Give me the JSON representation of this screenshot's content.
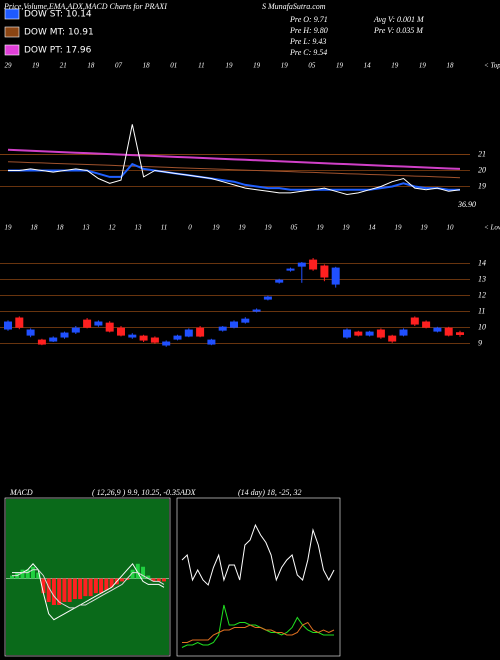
{
  "header": {
    "title": "Price,Volume,EMA,ADX,MACD Charts for PRAXI",
    "site": "S MunafaSutra.com",
    "legend": [
      {
        "name": "DOW ST: 10.14",
        "color": "#1e5aff"
      },
      {
        "name": "DOW MT: 10.91",
        "color": "#8b4513"
      },
      {
        "name": "DOW PT: 17.96",
        "color": "#e040d8"
      }
    ],
    "stats_left": [
      "Pre O: 9.71",
      "Pre H: 9.80",
      "Pre L: 9.43",
      "Pre C: 9.54"
    ],
    "stats_right": [
      "Avg V: 0.001 M",
      "Pre V: 0.035 M"
    ]
  },
  "chart_data": [
    {
      "type": "line",
      "tag": "< Tops",
      "note": "36.90",
      "date_labels": [
        "29",
        "19",
        "21",
        "18",
        "07",
        "18",
        "01",
        "11",
        "19",
        "19",
        "19",
        "05",
        "19",
        "14",
        "19",
        "19",
        "18"
      ],
      "ylim": [
        16.9,
        26.3
      ],
      "yticks": [
        21,
        20,
        19
      ],
      "grid": true,
      "grid_color": "#8b4513",
      "series": [
        {
          "name": "PT",
          "color": "#d040c8",
          "width": 2,
          "values": [
            21.3,
            21.27,
            21.24,
            21.21,
            21.18,
            21.15,
            21.12,
            21.09,
            21.06,
            21.03,
            21.0,
            20.97,
            20.94,
            20.91,
            20.88,
            20.85,
            20.82,
            20.79,
            20.76,
            20.73,
            20.7,
            20.67,
            20.64,
            20.61,
            20.58,
            20.55,
            20.52,
            20.49,
            20.46,
            20.43,
            20.4,
            20.37,
            20.34,
            20.31,
            20.28,
            20.25,
            20.22,
            20.19,
            20.16,
            20.13,
            20.1
          ]
        },
        {
          "name": "MT",
          "color": "#a0522d",
          "width": 1,
          "values": [
            20.55,
            20.53,
            20.5,
            20.48,
            20.45,
            20.43,
            20.4,
            20.38,
            20.35,
            20.33,
            20.3,
            20.28,
            20.25,
            20.23,
            20.2,
            20.18,
            20.15,
            20.13,
            20.1,
            20.08,
            20.05,
            20.03,
            20.0,
            19.98,
            19.95,
            19.93,
            19.9,
            19.88,
            19.85,
            19.83,
            19.8,
            19.78,
            19.75,
            19.73,
            19.7,
            19.68,
            19.65,
            19.63,
            19.6,
            19.58,
            19.55
          ]
        },
        {
          "name": "ST",
          "color": "#2060ff",
          "width": 2,
          "values": [
            20.0,
            20.0,
            20.0,
            20.0,
            20.0,
            20.0,
            20.0,
            20.0,
            19.8,
            19.6,
            19.6,
            20.4,
            20.1,
            20.0,
            19.9,
            19.8,
            19.7,
            19.6,
            19.5,
            19.4,
            19.3,
            19.1,
            19.0,
            18.9,
            18.9,
            18.8,
            18.8,
            18.8,
            18.8,
            18.8,
            18.8,
            18.8,
            18.8,
            18.9,
            19.0,
            19.2,
            19.0,
            18.9,
            18.9,
            18.8,
            18.8
          ]
        },
        {
          "name": "Price",
          "color": "#ffffff",
          "width": 1,
          "values": [
            20.0,
            20.0,
            20.1,
            20.0,
            19.9,
            20.0,
            20.1,
            20.0,
            19.5,
            19.2,
            19.4,
            22.9,
            19.6,
            20.0,
            19.9,
            19.8,
            19.7,
            19.6,
            19.5,
            19.3,
            19.1,
            18.9,
            18.8,
            18.7,
            18.6,
            18.6,
            18.7,
            18.8,
            18.9,
            18.7,
            18.5,
            18.6,
            18.8,
            19.0,
            19.3,
            19.5,
            18.9,
            18.8,
            18.9,
            18.7,
            18.8
          ]
        }
      ]
    },
    {
      "type": "candlestick",
      "tag": "< Lows",
      "date_labels": [
        "19",
        "18",
        "18",
        "13",
        "12",
        "13",
        "11",
        "0",
        "19",
        "19",
        "19",
        "05",
        "19",
        "19",
        "14",
        "19",
        "19",
        "10"
      ],
      "ylim": [
        8.6,
        16.1
      ],
      "yticks": [
        14,
        13,
        12,
        11,
        10,
        9
      ],
      "grid": true,
      "grid_color": "#8b4513",
      "up_color": "#2050ff",
      "down_color": "#ff2020",
      "candles": [
        {
          "o": 9.88,
          "h": 10.45,
          "l": 9.8,
          "c": 10.38
        },
        {
          "o": 10.63,
          "h": 10.7,
          "l": 9.9,
          "c": 10
        },
        {
          "o": 9.5,
          "h": 9.95,
          "l": 9.4,
          "c": 9.88
        },
        {
          "o": 9.25,
          "h": 9.3,
          "l": 8.9,
          "c": 8.94
        },
        {
          "o": 9.13,
          "h": 9.45,
          "l": 9.1,
          "c": 9.38
        },
        {
          "o": 9.38,
          "h": 9.75,
          "l": 9.3,
          "c": 9.69
        },
        {
          "o": 9.69,
          "h": 10.1,
          "l": 9.6,
          "c": 10
        },
        {
          "o": 10.5,
          "h": 10.6,
          "l": 9.95,
          "c": 10
        },
        {
          "o": 10.13,
          "h": 10.45,
          "l": 10.05,
          "c": 10.38
        },
        {
          "o": 10.31,
          "h": 10.4,
          "l": 9.7,
          "c": 9.75
        },
        {
          "o": 10,
          "h": 10.1,
          "l": 9.45,
          "c": 9.5
        },
        {
          "o": 9.38,
          "h": 9.65,
          "l": 9.3,
          "c": 9.56
        },
        {
          "o": 9.5,
          "h": 9.55,
          "l": 9.1,
          "c": 9.19
        },
        {
          "o": 9.38,
          "h": 9.45,
          "l": 9,
          "c": 9.06
        },
        {
          "o": 8.88,
          "h": 9.2,
          "l": 8.8,
          "c": 9.13
        },
        {
          "o": 9.25,
          "h": 9.55,
          "l": 9.2,
          "c": 9.5
        },
        {
          "o": 9.44,
          "h": 9.95,
          "l": 9.4,
          "c": 9.88
        },
        {
          "o": 10,
          "h": 10.1,
          "l": 9.4,
          "c": 9.44
        },
        {
          "o": 8.94,
          "h": 9.3,
          "l": 8.9,
          "c": 9.25
        },
        {
          "o": 9.81,
          "h": 10.1,
          "l": 9.75,
          "c": 10.06
        },
        {
          "o": 10,
          "h": 10.45,
          "l": 9.95,
          "c": 10.38
        },
        {
          "o": 10.31,
          "h": 10.65,
          "l": 10.25,
          "c": 10.56
        },
        {
          "o": 11,
          "h": 11.2,
          "l": 10.95,
          "c": 11.13
        },
        {
          "o": 11.75,
          "h": 12,
          "l": 11.7,
          "c": 11.94
        },
        {
          "o": 12.81,
          "h": 13.05,
          "l": 12.75,
          "c": 13
        },
        {
          "o": 13.56,
          "h": 13.75,
          "l": 13.5,
          "c": 13.69
        },
        {
          "o": 13.81,
          "h": 14.1,
          "l": 12.8,
          "c": 14.06
        },
        {
          "o": 14.25,
          "h": 14.35,
          "l": 13.55,
          "c": 13.63
        },
        {
          "o": 13.88,
          "h": 13.95,
          "l": 12.9,
          "c": 13.13
        },
        {
          "o": 12.69,
          "h": 13.8,
          "l": 12.5,
          "c": 13.75
        },
        {
          "o": 9.38,
          "h": 9.95,
          "l": 9.3,
          "c": 9.88
        },
        {
          "o": 9.75,
          "h": 9.8,
          "l": 9.45,
          "c": 9.5
        },
        {
          "o": 9.5,
          "h": 9.8,
          "l": 9.45,
          "c": 9.75
        },
        {
          "o": 9.88,
          "h": 9.95,
          "l": 9.3,
          "c": 9.38
        },
        {
          "o": 9.5,
          "h": 9.55,
          "l": 9.05,
          "c": 9.13
        },
        {
          "o": 9.5,
          "h": 9.95,
          "l": 9.45,
          "c": 9.88
        },
        {
          "o": 10.63,
          "h": 10.7,
          "l": 10.1,
          "c": 10.19
        },
        {
          "o": 10.38,
          "h": 10.45,
          "l": 9.95,
          "c": 10
        },
        {
          "o": 9.75,
          "h": 10.05,
          "l": 9.7,
          "c": 10
        },
        {
          "o": 10,
          "h": 10.05,
          "l": 9.45,
          "c": 9.5
        },
        {
          "o": 9.71,
          "h": 9.8,
          "l": 9.43,
          "c": 9.54
        }
      ]
    },
    {
      "type": "macd",
      "title": "MACD",
      "params": "( 12,26,9 ) 9.9, 10.25, -0.35",
      "ylim": [
        -2.5,
        2.5
      ],
      "background": "#0a6a1a",
      "up_color": "#20d040",
      "down_color": "#ff2020",
      "histogram": [
        0.1,
        0.2,
        0.3,
        0.3,
        0.4,
        0.2,
        -0.5,
        -0.8,
        -0.9,
        -0.9,
        -0.8,
        -0.8,
        -0.7,
        -0.7,
        -0.6,
        -0.6,
        -0.5,
        -0.5,
        -0.4,
        -0.3,
        -0.2,
        -0.1,
        -0.05,
        0.3,
        0.5,
        0.4,
        0.1,
        -0.1,
        -0.1,
        -0.1
      ],
      "series": [
        {
          "name": "MACD",
          "color": "#ffffff",
          "values": [
            0.2,
            0.2,
            0.2,
            0.3,
            0.5,
            0.3,
            -0.5,
            -1.2,
            -1.4,
            -1.3,
            -1.2,
            -1.1,
            -1.0,
            -0.9,
            -0.8,
            -0.7,
            -0.6,
            -0.5,
            -0.4,
            -0.3,
            -0.1,
            0.1,
            0.3,
            0.5,
            0.2,
            -0.1,
            -0.2,
            -0.2,
            -0.2,
            -0.3
          ]
        },
        {
          "name": "Signal",
          "color": "#dddddd",
          "values": [
            0.1,
            0.1,
            0.2,
            0.2,
            0.3,
            0.3,
            0.1,
            -0.3,
            -0.6,
            -0.8,
            -0.9,
            -1.0,
            -1.0,
            -0.9,
            -0.9,
            -0.8,
            -0.7,
            -0.6,
            -0.5,
            -0.4,
            -0.3,
            -0.2,
            0.0,
            0.2,
            0.2,
            0.1,
            0.0,
            -0.1,
            -0.1,
            -0.2
          ]
        }
      ]
    },
    {
      "type": "adx",
      "title": "ADX",
      "params": "(14 day) 18, -25, 32",
      "ylim": [
        0,
        60
      ],
      "background": "#000000",
      "series": [
        {
          "name": "ADX",
          "color": "#ffffff",
          "values": [
            38,
            40,
            30,
            34,
            30,
            28,
            35,
            40,
            30,
            36,
            36,
            30,
            44,
            46,
            52,
            48,
            45,
            40,
            30,
            35,
            38,
            40,
            32,
            30,
            38,
            50,
            44,
            34,
            30,
            34
          ]
        },
        {
          "name": "+DI",
          "color": "#20e020",
          "values": [
            3,
            4,
            4,
            5,
            4,
            4,
            5,
            8,
            20,
            12,
            12,
            13,
            13,
            12,
            12,
            11,
            10,
            9,
            9,
            8,
            9,
            11,
            15,
            12,
            10,
            9,
            9,
            8,
            8,
            8
          ]
        },
        {
          "name": "-DI",
          "color": "#e07020",
          "values": [
            5,
            5,
            6,
            6,
            6,
            6,
            8,
            9,
            10,
            10,
            11,
            11,
            11,
            12,
            11,
            11,
            10,
            10,
            9,
            9,
            8,
            8,
            9,
            12,
            13,
            10,
            9,
            10,
            9,
            10
          ]
        }
      ]
    }
  ]
}
